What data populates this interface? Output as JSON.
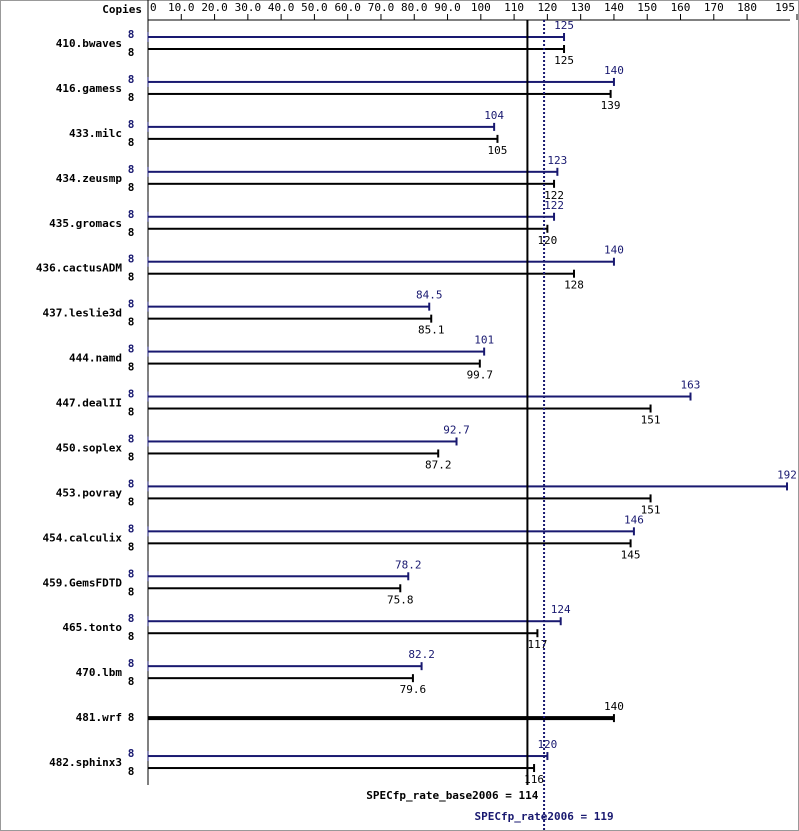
{
  "chart_data": {
    "type": "bar",
    "orientation": "horizontal",
    "copies_header": "Copies",
    "categories": [
      "410.bwaves",
      "416.gamess",
      "433.milc",
      "434.zeusmp",
      "435.gromacs",
      "436.cactusADM",
      "437.leslie3d",
      "444.namd",
      "447.dealII",
      "450.soplex",
      "453.povray",
      "454.calculix",
      "459.GemsFDTD",
      "465.tonto",
      "470.lbm",
      "481.wrf",
      "482.sphinx3"
    ],
    "series": [
      {
        "color": "#191970",
        "values": [
          125,
          140,
          104,
          123,
          122,
          140,
          84.5,
          101,
          163,
          92.7,
          192,
          146,
          78.2,
          124,
          82.2,
          null,
          120
        ],
        "copies": [
          8,
          8,
          8,
          8,
          8,
          8,
          8,
          8,
          8,
          8,
          8,
          8,
          8,
          8,
          8,
          null,
          8
        ]
      },
      {
        "color": "#000000",
        "values": [
          125,
          139,
          105,
          122,
          120,
          128,
          85.1,
          99.7,
          151,
          87.2,
          151,
          145,
          75.8,
          117,
          79.6,
          140,
          116
        ],
        "copies": [
          8,
          8,
          8,
          8,
          8,
          8,
          8,
          8,
          8,
          8,
          8,
          8,
          8,
          8,
          8,
          8,
          8
        ]
      }
    ],
    "xlim": [
      0,
      195
    ],
    "xticks": [
      0,
      {
        "value": 10,
        "label": "10.0"
      },
      {
        "value": 20,
        "label": "20.0"
      },
      {
        "value": 30,
        "label": "30.0"
      },
      {
        "value": 40,
        "label": "40.0"
      },
      {
        "value": 50,
        "label": "50.0"
      },
      {
        "value": 60,
        "label": "60.0"
      },
      {
        "value": 70,
        "label": "70.0"
      },
      {
        "value": 80,
        "label": "80.0"
      },
      {
        "value": 90,
        "label": "90.0"
      },
      100,
      110,
      120,
      130,
      140,
      150,
      160,
      170,
      180,
      195
    ],
    "reference_lines": [
      {
        "label": "SPECfp_rate_base2006 = 114",
        "value": 114,
        "color": "#000000",
        "dashed": false
      },
      {
        "label": "SPECfp_rate2006 = 119",
        "value": 119,
        "color": "#191970",
        "dashed": true
      }
    ]
  }
}
